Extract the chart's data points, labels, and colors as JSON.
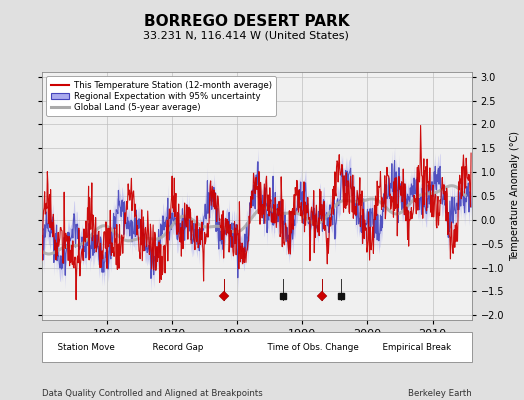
{
  "title": "BORREGO DESERT PARK",
  "subtitle": "33.231 N, 116.414 W (United States)",
  "ylabel": "Temperature Anomaly (°C)",
  "xlabel_left": "Data Quality Controlled and Aligned at Breakpoints",
  "xlabel_right": "Berkeley Earth",
  "ylim": [
    -2.1,
    3.1
  ],
  "xlim": [
    1950,
    2016
  ],
  "yticks": [
    -2,
    -1.5,
    -1,
    -0.5,
    0,
    0.5,
    1,
    1.5,
    2,
    2.5,
    3
  ],
  "xticks": [
    1960,
    1970,
    1980,
    1990,
    2000,
    2010
  ],
  "bg_color": "#e0e0e0",
  "plot_bg_color": "#f0f0f0",
  "station_move_years": [
    1978,
    1993
  ],
  "empirical_break_years": [
    1987,
    1996
  ],
  "marker_y": -1.6,
  "legend_items": [
    {
      "label": "This Temperature Station (12-month average)",
      "color": "#cc0000",
      "lw": 1.2
    },
    {
      "label": "Regional Expectation with 95% uncertainty",
      "color": "#5555cc",
      "lw": 1.2
    },
    {
      "label": "Global Land (5-year average)",
      "color": "#aaaaaa",
      "lw": 2.0
    }
  ],
  "marker_legend": [
    {
      "label": "Station Move",
      "color": "#cc0000",
      "marker": "D",
      "ms": 5
    },
    {
      "label": "Record Gap",
      "color": "#008800",
      "marker": "^",
      "ms": 5
    },
    {
      "label": "Time of Obs. Change",
      "color": "#0000cc",
      "marker": "v",
      "ms": 5
    },
    {
      "label": "Empirical Break",
      "color": "#000000",
      "marker": "s",
      "ms": 4
    }
  ],
  "seed": 17
}
